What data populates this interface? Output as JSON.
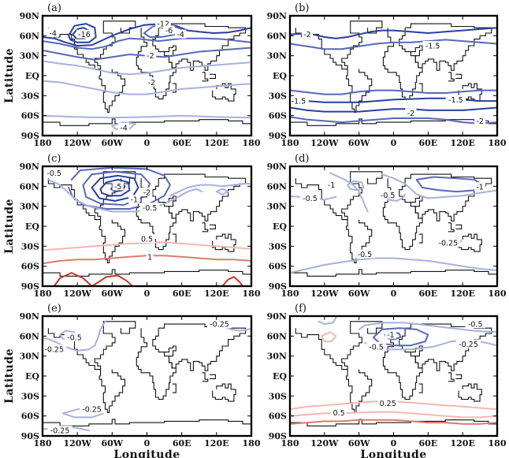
{
  "chart_data": [
    {
      "panel": "(a)",
      "type": "contour",
      "xticks": [
        "180",
        "120W",
        "60W",
        "0",
        "60E",
        "120E",
        "180"
      ],
      "yticks": [
        "90N",
        "60N",
        "30N",
        "EQ",
        "30S",
        "60S",
        "90S"
      ],
      "ylabel": "Latitude",
      "xlabel": "",
      "contour_labels": [
        "-16",
        "-12",
        "-6",
        "-4",
        "-4",
        "-2",
        "-2",
        "-4"
      ],
      "contour_values": [
        -16,
        -12,
        -8,
        -6,
        -4,
        -2
      ]
    },
    {
      "panel": "(b)",
      "type": "contour",
      "xticks": [
        "180",
        "120W",
        "60W",
        "0",
        "60E",
        "120E",
        "180"
      ],
      "yticks": [
        "90N",
        "60N",
        "30N",
        "EQ",
        "30S",
        "60S",
        "90S"
      ],
      "ylabel": "",
      "xlabel": "",
      "contour_labels": [
        "-2",
        "-1.5",
        "-1.5",
        "-1.5",
        "-2",
        "-2"
      ],
      "contour_values": [
        -2,
        -1.5
      ]
    },
    {
      "panel": "(c)",
      "type": "contour",
      "xticks": [
        "180",
        "120W",
        "60W",
        "0",
        "60E",
        "120E",
        "180"
      ],
      "yticks": [
        "90N",
        "60N",
        "30N",
        "EQ",
        "30S",
        "60S",
        "90S"
      ],
      "ylabel": "Latitude",
      "xlabel": "",
      "contour_labels": [
        "-0.5",
        "-5",
        "-2",
        "-1",
        "-0.5",
        "0.5",
        "1"
      ],
      "contour_values": [
        -5,
        -4,
        -3,
        -2,
        -1,
        -0.5,
        0.5,
        1
      ]
    },
    {
      "panel": "(d)",
      "type": "contour",
      "xticks": [
        "180",
        "120W",
        "60W",
        "0",
        "60E",
        "120E",
        "180"
      ],
      "yticks": [
        "90N",
        "60N",
        "30N",
        "EQ",
        "30S",
        "60S",
        "90S"
      ],
      "ylabel": "",
      "xlabel": "",
      "contour_labels": [
        "-1",
        "-1",
        "-0.5",
        "-0.5",
        "-0.25",
        "-0.5"
      ],
      "contour_values": [
        -1,
        -0.5,
        -0.25
      ]
    },
    {
      "panel": "(e)",
      "type": "contour",
      "xticks": [
        "180",
        "120W",
        "60W",
        "0",
        "60E",
        "120E",
        "180"
      ],
      "yticks": [
        "90N",
        "60N",
        "30N",
        "EQ",
        "30S",
        "60S",
        "90S"
      ],
      "ylabel": "Latitude",
      "xlabel": "Longitude",
      "contour_labels": [
        "-0.5",
        "-0.25",
        "-0.25",
        "-0.25",
        "-0.25"
      ],
      "contour_values": [
        -0.5,
        -0.25
      ]
    },
    {
      "panel": "(f)",
      "type": "contour",
      "xticks": [
        "180",
        "120W",
        "60W",
        "0",
        "60E",
        "120E",
        "180"
      ],
      "yticks": [
        "90N",
        "60N",
        "30N",
        "EQ",
        "30S",
        "60S",
        "90S"
      ],
      "ylabel": "",
      "xlabel": "Longitude",
      "contour_labels": [
        "-1",
        "-0.5",
        "-0.5",
        "-0.25",
        "0.25",
        "0.5"
      ],
      "contour_values": [
        -1,
        -0.5,
        -0.25,
        0.25,
        0.5
      ]
    }
  ],
  "colors": {
    "negative_strong": "#2a3f9e",
    "negative_mid": "#5868b8",
    "negative_weak": "#a8b1de",
    "positive_weak": "#f2b8b0",
    "positive_mid": "#dc7a6c",
    "positive_strong": "#c0392b",
    "coast": "#111111"
  }
}
